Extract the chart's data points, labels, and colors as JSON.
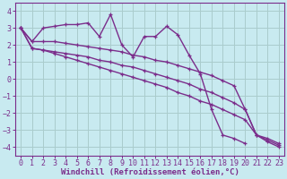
{
  "bg_color": "#c8eaf0",
  "grid_color": "#aacccc",
  "line_color": "#7b2d8b",
  "xlabel": "Windchill (Refroidissement éolien,°C)",
  "xlim": [
    -0.5,
    23.5
  ],
  "ylim": [
    -4.5,
    4.5
  ],
  "yticks": [
    -4,
    -3,
    -2,
    -1,
    0,
    1,
    2,
    3,
    4
  ],
  "xticks": [
    0,
    1,
    2,
    3,
    4,
    5,
    6,
    7,
    8,
    9,
    10,
    11,
    12,
    13,
    14,
    15,
    16,
    17,
    18,
    19,
    20,
    21,
    22,
    23
  ],
  "series": [
    {
      "comment": "jagged main line",
      "x": [
        0,
        1,
        2,
        3,
        4,
        5,
        6,
        7,
        8,
        9,
        10,
        11,
        12,
        13,
        14,
        15,
        16,
        17,
        18,
        19,
        20,
        21,
        22,
        23
      ],
      "y": [
        3.0,
        2.2,
        3.0,
        3.1,
        3.2,
        3.2,
        3.3,
        2.5,
        3.8,
        2.0,
        1.3,
        2.5,
        2.5,
        3.1,
        2.6,
        1.4,
        0.3,
        -1.8,
        -3.3,
        -3.5,
        -3.8,
        null,
        null,
        null
      ]
    },
    {
      "comment": "nearly straight line 1 (top)",
      "x": [
        0,
        1,
        2,
        3,
        4,
        5,
        6,
        7,
        8,
        9,
        10,
        11,
        12,
        13,
        14,
        15,
        16,
        17,
        18,
        19,
        20,
        21,
        22,
        23
      ],
      "y": [
        3.0,
        2.2,
        2.2,
        2.2,
        2.1,
        2.0,
        1.9,
        1.8,
        1.7,
        1.6,
        1.4,
        1.3,
        1.1,
        1.0,
        0.8,
        0.6,
        0.4,
        0.2,
        -0.1,
        -0.4,
        -1.8,
        -3.3,
        -3.5,
        -3.8
      ]
    },
    {
      "comment": "nearly straight line 2 (middle)",
      "x": [
        0,
        1,
        2,
        3,
        4,
        5,
        6,
        7,
        8,
        9,
        10,
        11,
        12,
        13,
        14,
        15,
        16,
        17,
        18,
        19,
        20,
        21,
        22,
        23
      ],
      "y": [
        3.0,
        1.8,
        1.7,
        1.6,
        1.5,
        1.4,
        1.3,
        1.1,
        1.0,
        0.8,
        0.7,
        0.5,
        0.3,
        0.1,
        -0.1,
        -0.3,
        -0.6,
        -0.8,
        -1.1,
        -1.4,
        -1.8,
        -3.3,
        -3.6,
        -3.9
      ]
    },
    {
      "comment": "nearly straight line 3 (bottom)",
      "x": [
        0,
        1,
        2,
        3,
        4,
        5,
        6,
        7,
        8,
        9,
        10,
        11,
        12,
        13,
        14,
        15,
        16,
        17,
        18,
        19,
        20,
        21,
        22,
        23
      ],
      "y": [
        3.0,
        1.8,
        1.7,
        1.5,
        1.3,
        1.1,
        0.9,
        0.7,
        0.5,
        0.3,
        0.1,
        -0.1,
        -0.3,
        -0.5,
        -0.8,
        -1.0,
        -1.3,
        -1.5,
        -1.8,
        -2.1,
        -2.4,
        -3.3,
        -3.7,
        -4.0
      ]
    }
  ],
  "font_family": "monospace",
  "xlabel_fontsize": 6.5,
  "tick_fontsize": 6.0
}
